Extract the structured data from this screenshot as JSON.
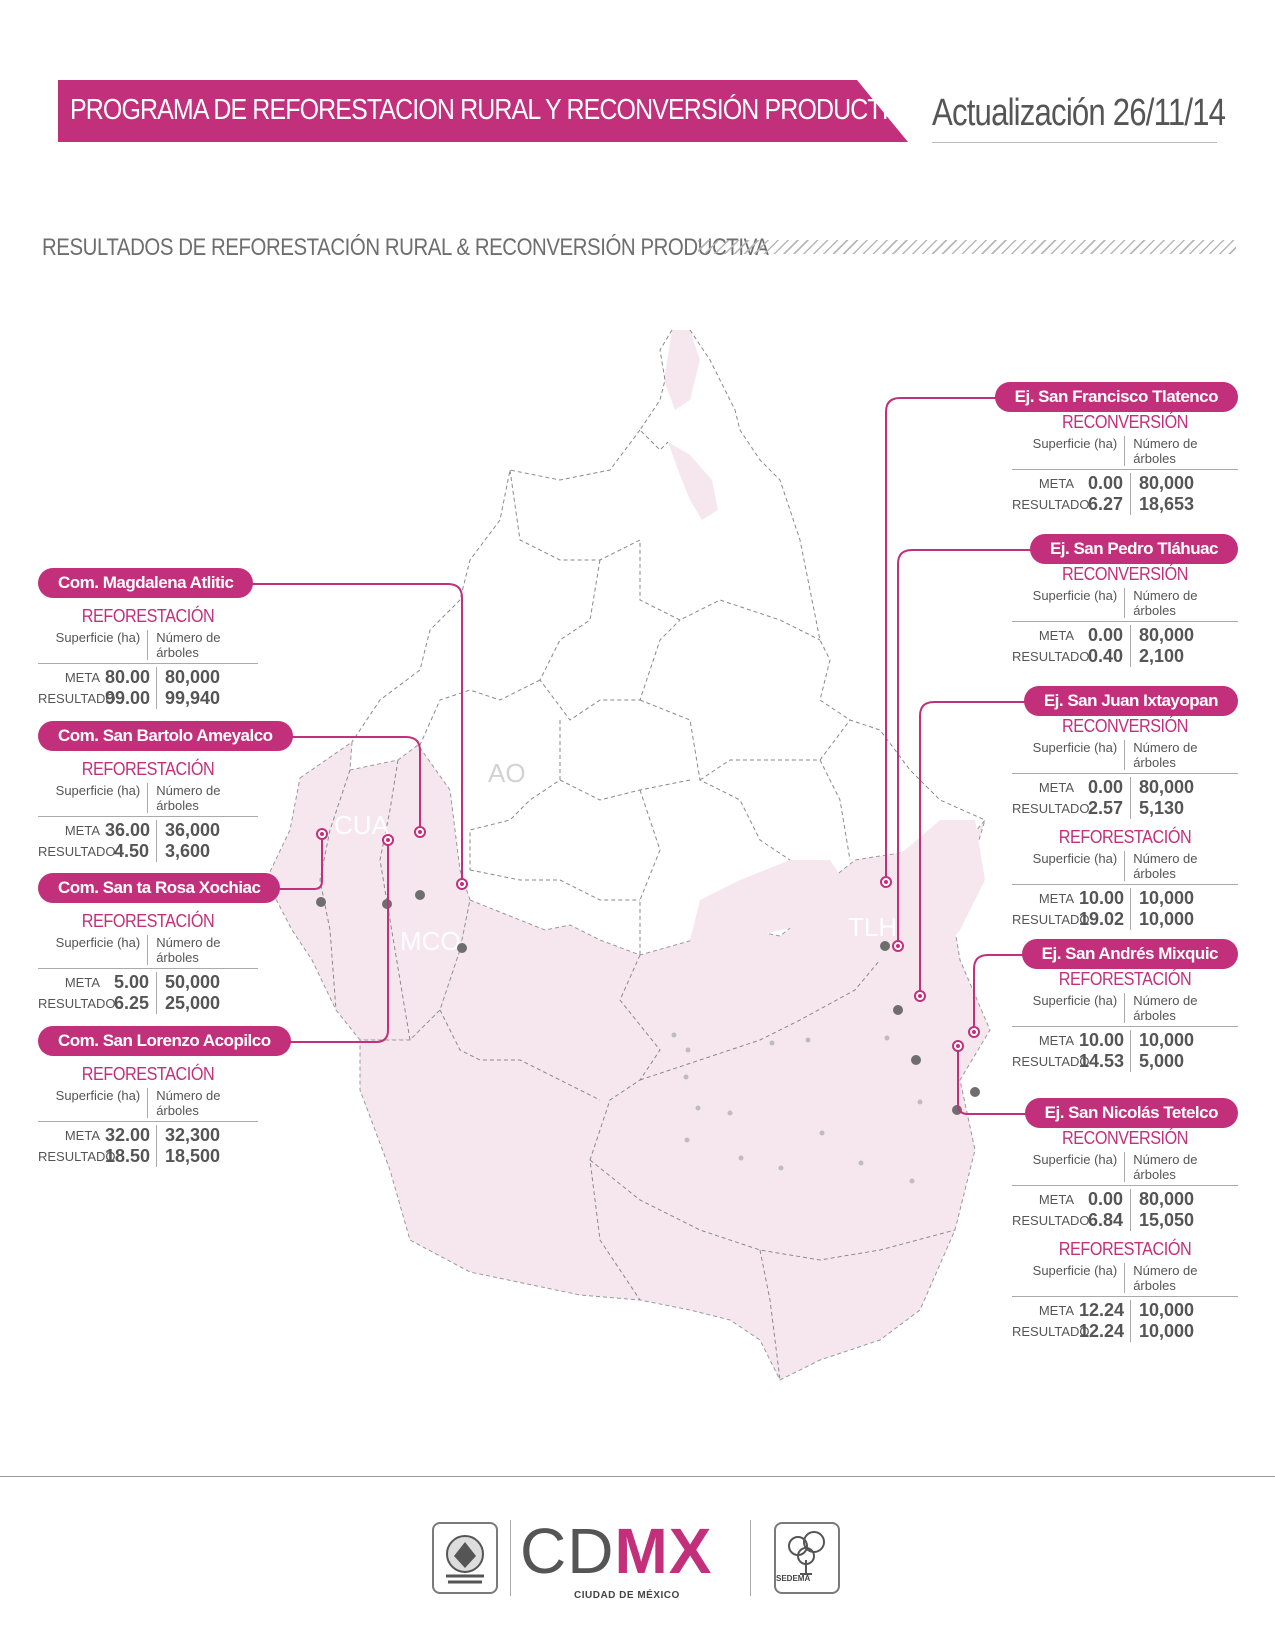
{
  "header": {
    "title": "PROGRAMA DE REFORESTACION RURAL Y RECONVERSIÓN PRODUCTIVA",
    "date": "Actualización 26/11/14"
  },
  "section_title": "RESULTADOS DE REFORESTACIÓN RURAL & RECONVERSIÓN PRODUCTIVA",
  "colors": {
    "accent": "#c2307b",
    "land": "#f6e7ef",
    "text": "#4a4a4a"
  },
  "map_labels": {
    "ao": "AO",
    "cua": "CUA",
    "mco": "MCO",
    "tlh": "TLH"
  },
  "table_headers": {
    "superficie": "Superficie (ha)",
    "arboles": "Número de árboles",
    "meta": "META",
    "resultado": "RESULTADO"
  },
  "cards": [
    {
      "name": "Com. Magdalena Atlitic",
      "sections": [
        {
          "type": "REFORESTACIÓN",
          "meta_sup": "80.00",
          "meta_arb": "80,000",
          "res_sup": "99.00",
          "res_arb": "99,940"
        }
      ]
    },
    {
      "name": "Com. San  Bartolo Ameyalco",
      "sections": [
        {
          "type": "REFORESTACIÓN",
          "meta_sup": "36.00",
          "meta_arb": "36,000",
          "res_sup": "4.50",
          "res_arb": "3,600"
        }
      ]
    },
    {
      "name": "Com. San ta Rosa Xochiac",
      "sections": [
        {
          "type": "REFORESTACIÓN",
          "meta_sup": "5.00",
          "meta_arb": "50,000",
          "res_sup": "6.25",
          "res_arb": "25,000"
        }
      ]
    },
    {
      "name": "Com. San  Lorenzo Acopilco",
      "sections": [
        {
          "type": "REFORESTACIÓN",
          "meta_sup": "32.00",
          "meta_arb": "32,300",
          "res_sup": "18.50",
          "res_arb": "18,500"
        }
      ]
    },
    {
      "name": "Ej. San Francisco Tlatenco",
      "sections": [
        {
          "type": "RECONVERSIÓN",
          "meta_sup": "0.00",
          "meta_arb": "80,000",
          "res_sup": "6.27",
          "res_arb": "18,653"
        }
      ]
    },
    {
      "name": "Ej. San Pedro Tláhuac",
      "sections": [
        {
          "type": "RECONVERSIÓN",
          "meta_sup": "0.00",
          "meta_arb": "80,000",
          "res_sup": "0.40",
          "res_arb": "2,100"
        }
      ]
    },
    {
      "name": "Ej. San  Juan Ixtayopan",
      "sections": [
        {
          "type": "RECONVERSIÓN",
          "meta_sup": "0.00",
          "meta_arb": "80,000",
          "res_sup": "2.57",
          "res_arb": "5,130"
        },
        {
          "type": "REFORESTACIÓN",
          "meta_sup": "10.00",
          "meta_arb": "10,000",
          "res_sup": "19.02",
          "res_arb": "10,000"
        }
      ]
    },
    {
      "name": "Ej. San Andrés Mixquic",
      "sections": [
        {
          "type": "REFORESTACIÓN",
          "meta_sup": "10.00",
          "meta_arb": "10,000",
          "res_sup": "14.53",
          "res_arb": "5,000"
        }
      ]
    },
    {
      "name": "Ej. San Nicolás Tetelco",
      "sections": [
        {
          "type": "RECONVERSIÓN",
          "meta_sup": "0.00",
          "meta_arb": "80,000",
          "res_sup": "6.84",
          "res_arb": "15,050"
        },
        {
          "type": "REFORESTACIÓN",
          "meta_sup": "12.24",
          "meta_arb": "10,000",
          "res_sup": "12.24",
          "res_arb": "10,000"
        }
      ]
    }
  ],
  "footer": {
    "logo_text_a": "CD",
    "logo_text_b": "MX",
    "logo_sub": "CIUDAD DE MÉXICO",
    "sedema": "SEDEMA"
  }
}
